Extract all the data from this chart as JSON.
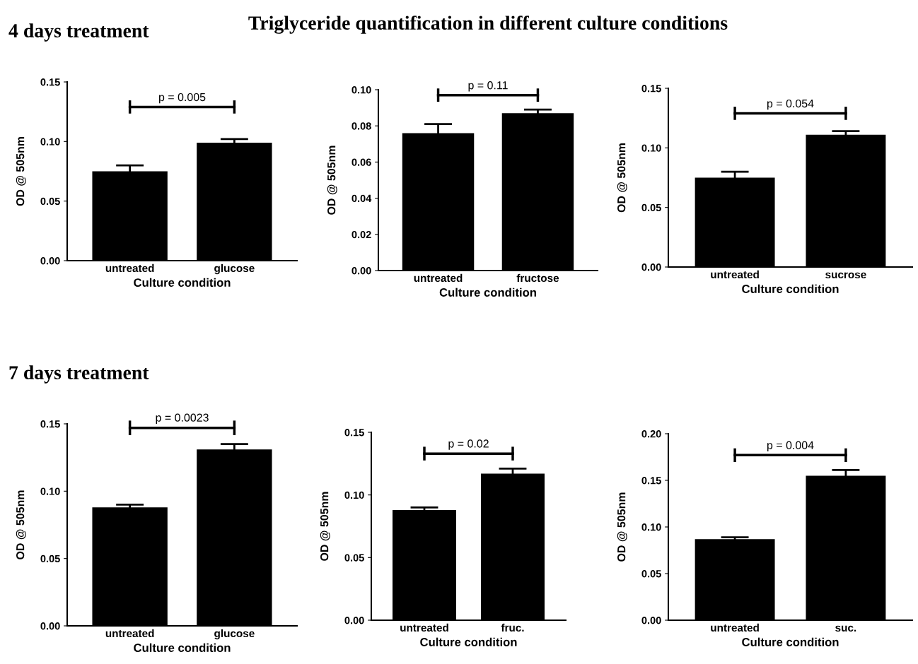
{
  "chart_data": [
    {
      "type": "bar",
      "subtitle": "4 days treatment",
      "categories": [
        "untreated",
        "glucose"
      ],
      "values": [
        0.075,
        0.099
      ],
      "errors": [
        0.005,
        0.003
      ],
      "color": "#000000",
      "xlabel": "Culture condition",
      "ylabel": "OD @ 505nm",
      "ylim": [
        0,
        0.15
      ],
      "yticks": [
        {
          "value": 0,
          "label": "0.00"
        },
        {
          "value": 0.05,
          "label": "0.05"
        },
        {
          "value": 0.1,
          "label": "0.10"
        },
        {
          "value": 0.15,
          "label": "0.15"
        }
      ],
      "annotations": [
        "p = 0.005"
      ]
    },
    {
      "type": "bar",
      "title": "Triglyceride quantification in different culture conditions",
      "categories": [
        "untreated",
        "fructose"
      ],
      "values": [
        0.076,
        0.087
      ],
      "errors": [
        0.005,
        0.002
      ],
      "color": "#000000",
      "xlabel": "Culture condition",
      "ylabel": "OD @ 505nm",
      "ylim": [
        0,
        0.1
      ],
      "yticks": [
        {
          "value": 0,
          "label": "0.00"
        },
        {
          "value": 0.02,
          "label": "0.02"
        },
        {
          "value": 0.04,
          "label": "0.04"
        },
        {
          "value": 0.06,
          "label": "0.06"
        },
        {
          "value": 0.08,
          "label": "0.08"
        },
        {
          "value": 0.1,
          "label": "0.10"
        }
      ],
      "annotations": [
        "p = 0.11"
      ]
    },
    {
      "type": "bar",
      "categories": [
        "untreated",
        "sucrose"
      ],
      "values": [
        0.075,
        0.111
      ],
      "errors": [
        0.005,
        0.003
      ],
      "color": "#000000",
      "xlabel": "Culture condition",
      "ylabel": "OD @ 505nm",
      "ylim": [
        0,
        0.15
      ],
      "yticks": [
        {
          "value": 0,
          "label": "0.00"
        },
        {
          "value": 0.05,
          "label": "0.05"
        },
        {
          "value": 0.1,
          "label": "0.10"
        },
        {
          "value": 0.15,
          "label": "0.15"
        }
      ],
      "annotations": [
        "p = 0.054"
      ]
    },
    {
      "type": "bar",
      "subtitle": "7 days treatment",
      "categories": [
        "untreated",
        "glucose"
      ],
      "values": [
        0.088,
        0.131
      ],
      "errors": [
        0.002,
        0.004
      ],
      "color": "#000000",
      "xlabel": "Culture condition",
      "ylabel": "OD @ 505nm",
      "ylim": [
        0,
        0.15
      ],
      "yticks": [
        {
          "value": 0,
          "label": "0.00"
        },
        {
          "value": 0.05,
          "label": "0.05"
        },
        {
          "value": 0.1,
          "label": "0.10"
        },
        {
          "value": 0.15,
          "label": "0.15"
        }
      ],
      "annotations": [
        "p = 0.0023"
      ]
    },
    {
      "type": "bar",
      "categories": [
        "untreated",
        "fruc."
      ],
      "values": [
        0.088,
        0.117
      ],
      "errors": [
        0.002,
        0.004
      ],
      "color": "#000000",
      "xlabel": "Culture condition",
      "ylabel": "OD @ 505nm",
      "ylim": [
        0,
        0.15
      ],
      "yticks": [
        {
          "value": 0,
          "label": "0.00"
        },
        {
          "value": 0.05,
          "label": "0.05"
        },
        {
          "value": 0.1,
          "label": "0.10"
        },
        {
          "value": 0.15,
          "label": "0.15"
        }
      ],
      "annotations": [
        "p = 0.02"
      ]
    },
    {
      "type": "bar",
      "categories": [
        "untreated",
        "suc."
      ],
      "values": [
        0.087,
        0.155
      ],
      "errors": [
        0.002,
        0.006
      ],
      "color": "#000000",
      "xlabel": "Culture condition",
      "ylabel": "OD @ 505nm",
      "ylim": [
        0,
        0.2
      ],
      "yticks": [
        {
          "value": 0,
          "label": "0.00"
        },
        {
          "value": 0.05,
          "label": "0.05"
        },
        {
          "value": 0.1,
          "label": "0.10"
        },
        {
          "value": 0.15,
          "label": "0.15"
        },
        {
          "value": 0.2,
          "label": "0.20"
        }
      ],
      "annotations": [
        "p = 0.004"
      ]
    }
  ]
}
